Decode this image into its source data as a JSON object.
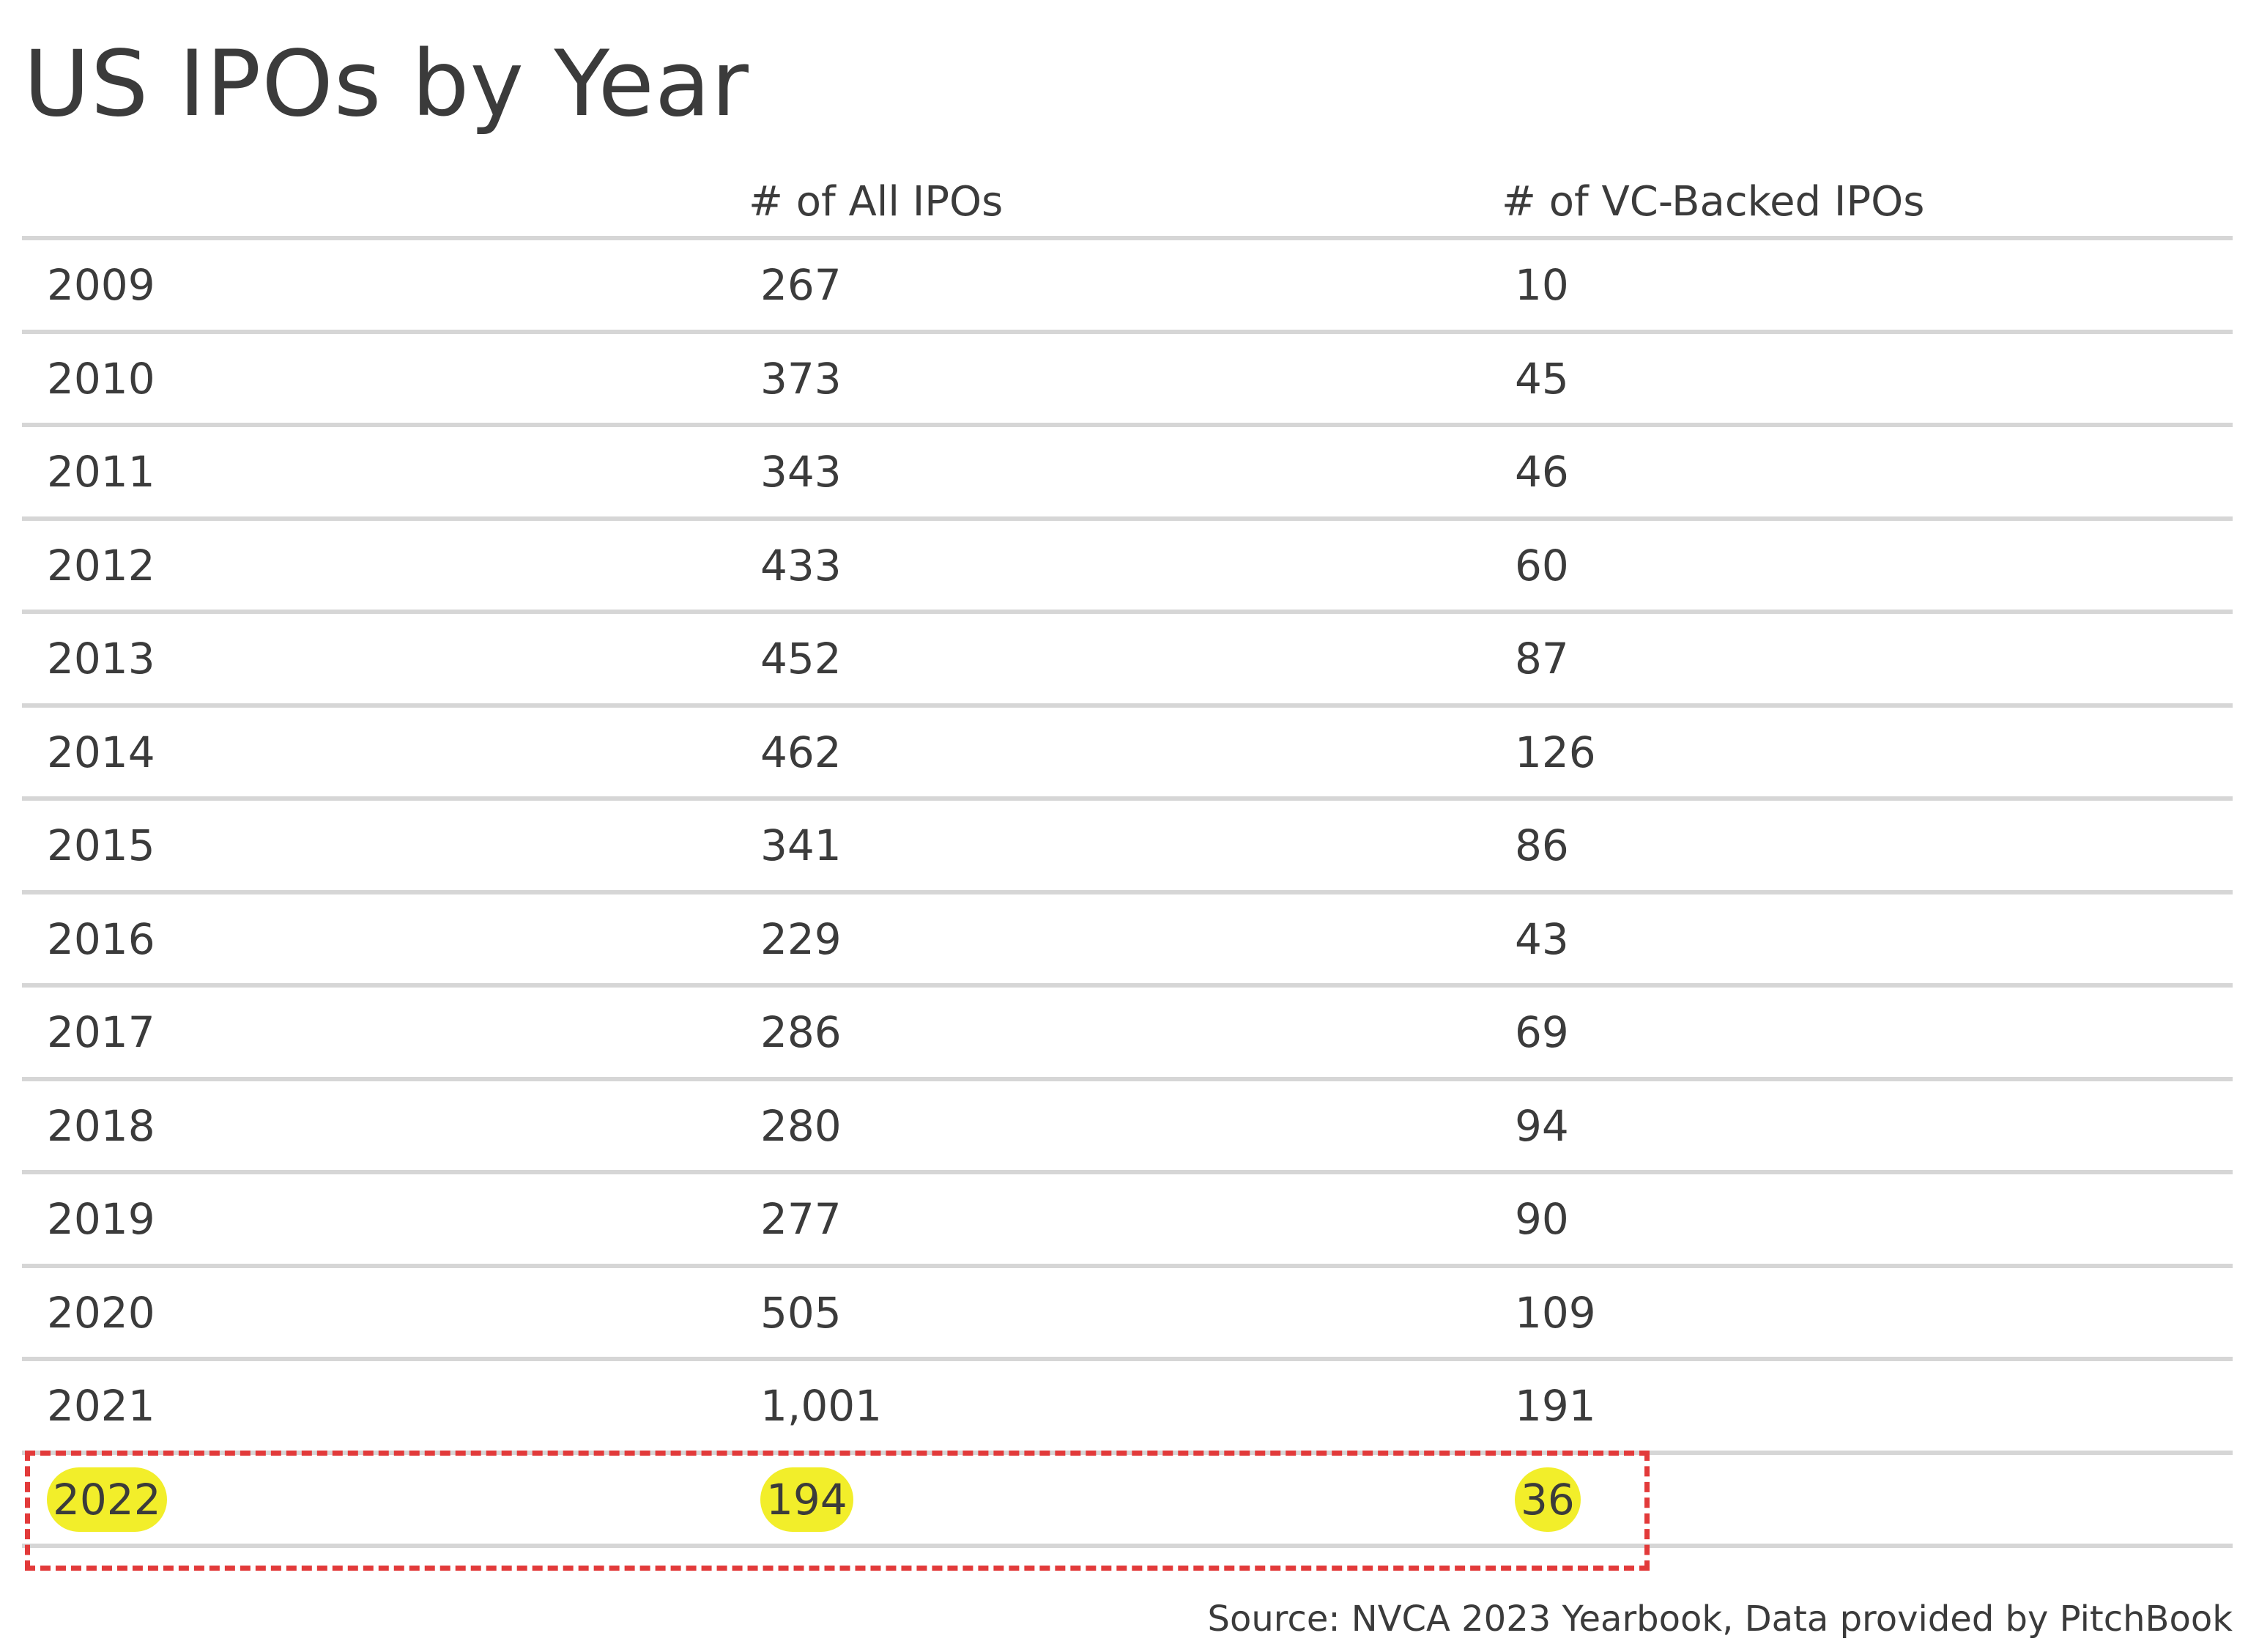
{
  "title": "US IPOs by Year",
  "columns": {
    "year": "",
    "all_ipos": "# of All IPOs",
    "vc_backed_ipos": "# of VC-Backed IPOs"
  },
  "rows": [
    {
      "year": "2009",
      "all": "267",
      "vc": "10"
    },
    {
      "year": "2010",
      "all": "373",
      "vc": "45"
    },
    {
      "year": "2011",
      "all": "343",
      "vc": "46"
    },
    {
      "year": "2012",
      "all": "433",
      "vc": "60"
    },
    {
      "year": "2013",
      "all": "452",
      "vc": "87"
    },
    {
      "year": "2014",
      "all": "462",
      "vc": "126"
    },
    {
      "year": "2015",
      "all": "341",
      "vc": "86"
    },
    {
      "year": "2016",
      "all": "229",
      "vc": "43"
    },
    {
      "year": "2017",
      "all": "286",
      "vc": "69"
    },
    {
      "year": "2018",
      "all": "280",
      "vc": "94"
    },
    {
      "year": "2019",
      "all": "277",
      "vc": "90"
    },
    {
      "year": "2020",
      "all": "505",
      "vc": "109"
    },
    {
      "year": "2021",
      "all": "1,001",
      "vc": "191"
    },
    {
      "year": "2022",
      "all": "194",
      "vc": "36"
    }
  ],
  "highlighted_row": "2022",
  "colors": {
    "highlight_fill": "#f2ee2a",
    "highlight_border": "#e23a3a",
    "rule_line": "#d6d6d6",
    "text": "#3b3b3b"
  },
  "source": "Source: NVCA 2023 Yearbook, Data provided by PitchBook"
}
